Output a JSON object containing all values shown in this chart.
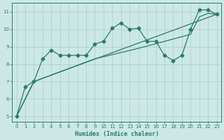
{
  "xlabel": "Humidex (Indice chaleur)",
  "bg_color": "#cce8e5",
  "grid_color": "#aaccca",
  "line_color": "#2a7a6a",
  "xlim": [
    -0.5,
    23.5
  ],
  "ylim": [
    4.7,
    11.5
  ],
  "xticks": [
    0,
    1,
    2,
    3,
    4,
    5,
    6,
    7,
    8,
    9,
    10,
    11,
    12,
    13,
    14,
    15,
    16,
    17,
    18,
    19,
    20,
    21,
    22,
    23
  ],
  "yticks": [
    5,
    6,
    7,
    8,
    9,
    10,
    11
  ],
  "line1_x": [
    0,
    1,
    2,
    3,
    4,
    5,
    6,
    7,
    8,
    9,
    10,
    11,
    12,
    13,
    14,
    15,
    16,
    17,
    18,
    19,
    20,
    21,
    22,
    23
  ],
  "line1_y": [
    5.0,
    6.7,
    7.0,
    8.3,
    8.8,
    8.5,
    8.5,
    8.5,
    8.5,
    9.15,
    9.3,
    10.05,
    10.35,
    10.0,
    10.05,
    9.3,
    9.3,
    8.5,
    8.2,
    8.5,
    10.0,
    11.1,
    11.1,
    10.85
  ],
  "line2_x": [
    0,
    2,
    23
  ],
  "line2_y": [
    5.0,
    7.0,
    10.85
  ],
  "line3_x": [
    0,
    2,
    9,
    14,
    20,
    21,
    22,
    23
  ],
  "line3_y": [
    5.0,
    7.0,
    8.3,
    8.9,
    9.7,
    10.7,
    10.9,
    10.85
  ],
  "markersize": 2.5,
  "linewidth": 0.9
}
